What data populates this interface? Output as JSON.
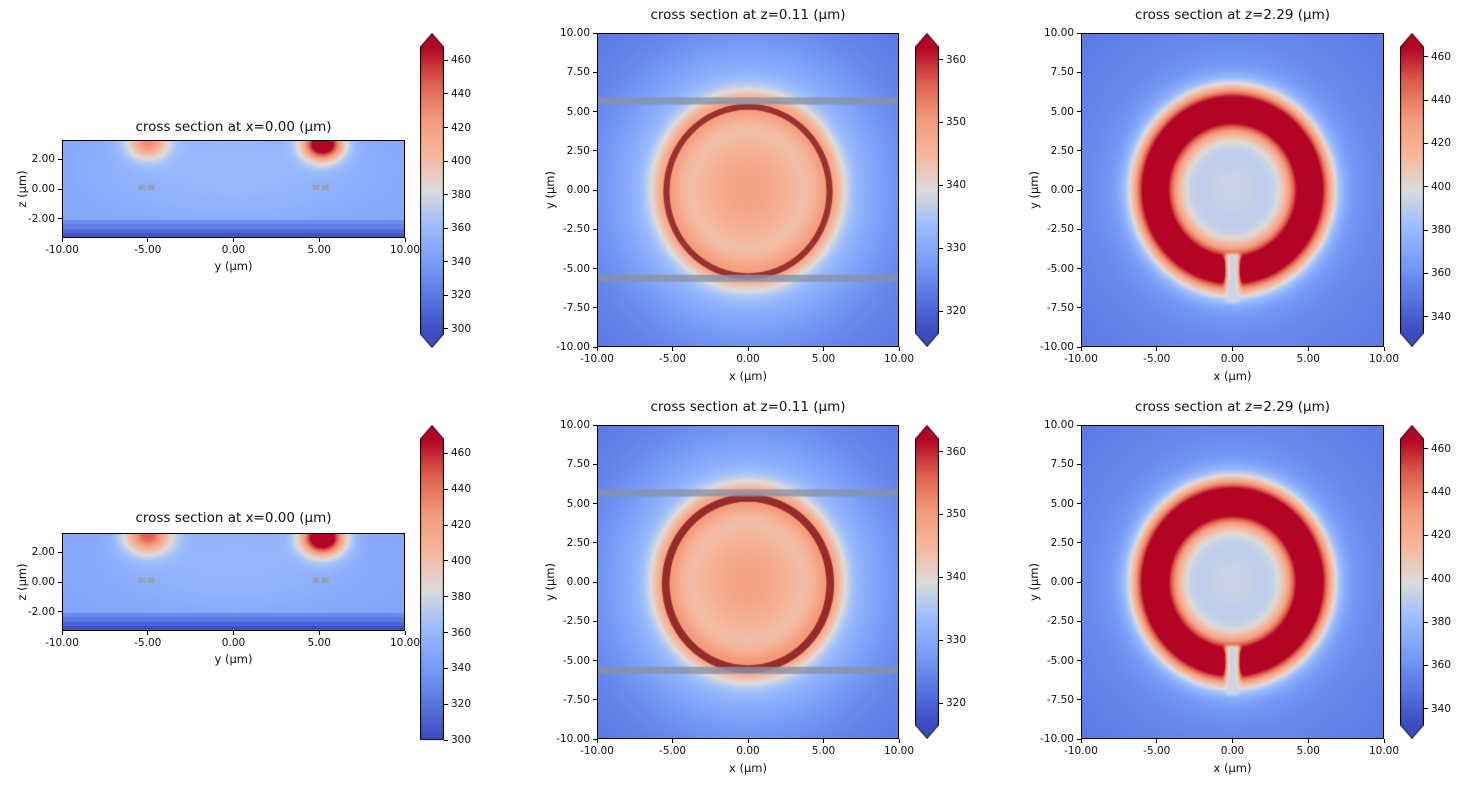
{
  "figure": {
    "background": "#ffffff",
    "colormap": {
      "name": "coolwarm",
      "stops": [
        [
          0.0,
          [
            59,
            76,
            192
          ]
        ],
        [
          0.125,
          [
            89,
            119,
            227
          ]
        ],
        [
          0.25,
          [
            122,
            158,
            248
          ]
        ],
        [
          0.375,
          [
            157,
            189,
            254
          ]
        ],
        [
          0.5,
          [
            221,
            220,
            219
          ]
        ],
        [
          0.625,
          [
            246,
            183,
            156
          ]
        ],
        [
          0.75,
          [
            244,
            154,
            123
          ]
        ],
        [
          0.875,
          [
            222,
            97,
            77
          ]
        ],
        [
          1.0,
          [
            180,
            4,
            38
          ]
        ]
      ]
    }
  },
  "chart_data": [
    {
      "id": "row1-col1",
      "type": "heatmap",
      "title": "cross section at x=0.00 (μm)",
      "xlabel": "y (μm)",
      "ylabel": "z (μm)",
      "x_range": [
        -10,
        10
      ],
      "y_range": [
        -3.27,
        3.27
      ],
      "x_ticks": [
        -10,
        -5,
        0,
        5,
        10
      ],
      "x_tick_labels": [
        "-10.00",
        "-5.00",
        "0.00",
        "5.00",
        "10.00"
      ],
      "y_ticks": [
        2,
        0,
        -2
      ],
      "y_tick_labels": [
        "2.00",
        "0.00",
        "-2.00"
      ],
      "colorbar": {
        "vmin": 297,
        "vmax": 468,
        "tick_values": [
          460,
          440,
          420,
          400,
          380,
          360,
          340,
          320,
          300
        ],
        "tick_labels": [
          "460",
          "440",
          "420",
          "400",
          "380",
          "360",
          "340",
          "320",
          "300"
        ],
        "extend_max": true,
        "extend_min": true
      },
      "field": {
        "model": "chip_section",
        "params": {
          "base": 345,
          "bump": {
            "amp": 14,
            "y0": 0,
            "z0": 1.3,
            "sy": 6.0,
            "sz": 2.6
          },
          "substrate_top": -2.05,
          "substrate_bands": [
            331,
            322,
            312,
            301
          ],
          "blobs": [
            {
              "y0": -5.0,
              "z0": 3.15,
              "sy": 0.85,
              "sz": 0.8,
              "amp": 80
            },
            {
              "y0": 5.2,
              "z0": 3.0,
              "sy": 0.8,
              "sz": 0.75,
              "amp": 152
            }
          ]
        }
      },
      "overlays": [
        {
          "type": "dash",
          "x0": -5.55,
          "x1": -5.15,
          "y0": -0.07,
          "y1": 0.28,
          "color": "#96a0ae",
          "alpha": 0.95
        },
        {
          "type": "dash",
          "x0": -5.0,
          "x1": -4.6,
          "y0": -0.07,
          "y1": 0.28,
          "color": "#96a0ae",
          "alpha": 0.95
        },
        {
          "type": "dash",
          "x0": 4.6,
          "x1": 5.0,
          "y0": -0.07,
          "y1": 0.28,
          "color": "#96a0ae",
          "alpha": 0.95
        },
        {
          "type": "dash",
          "x0": 5.15,
          "x1": 5.55,
          "y0": -0.07,
          "y1": 0.28,
          "color": "#96a0ae",
          "alpha": 0.95
        }
      ]
    },
    {
      "id": "row1-col2",
      "type": "heatmap",
      "title": "cross section at z=0.11 (μm)",
      "xlabel": "x (μm)",
      "ylabel": "y (μm)",
      "x_range": [
        -10,
        10
      ],
      "y_range": [
        -10,
        10
      ],
      "x_ticks": [
        -10,
        -5,
        0,
        5,
        10
      ],
      "x_tick_labels": [
        "-10.00",
        "-5.00",
        "0.00",
        "5.00",
        "10.00"
      ],
      "y_ticks": [
        10,
        7.5,
        5,
        2.5,
        0,
        -2.5,
        -5,
        -7.5,
        -10
      ],
      "y_tick_labels": [
        "10.00",
        "7.50",
        "5.00",
        "2.50",
        "0.00",
        "-2.50",
        "-5.00",
        "-7.50",
        "-10.00"
      ],
      "colorbar": {
        "vmin": 316.5,
        "vmax": 362,
        "tick_values": [
          360,
          350,
          340,
          330,
          320
        ],
        "tick_labels": [
          "360",
          "350",
          "340",
          "330",
          "320"
        ],
        "extend_max": true,
        "extend_min": true
      },
      "field": {
        "model": "radial_blob",
        "params": {
          "base": 322,
          "amp": 27,
          "sigma": 5.2,
          "ring_r": 5.4,
          "ring_sigma": 0.75,
          "ring_amp": 12
        }
      },
      "overlays": [
        {
          "type": "circle",
          "cx": 0,
          "cy": -0.1,
          "r": 5.4,
          "width": 0.4,
          "color": "#8e2222",
          "alpha": 0.88
        },
        {
          "type": "hband",
          "y0": 5.45,
          "y1": 5.9,
          "color": "#8793a6",
          "alpha": 0.82
        },
        {
          "type": "hband",
          "y0": -5.85,
          "y1": -5.4,
          "color": "#8793a6",
          "alpha": 0.82
        }
      ]
    },
    {
      "id": "row1-col3",
      "type": "heatmap",
      "title": "cross section at z=2.29 (μm)",
      "xlabel": "x (μm)",
      "ylabel": "y (μm)",
      "x_range": [
        -10,
        10
      ],
      "y_range": [
        -10,
        10
      ],
      "x_ticks": [
        -10,
        -5,
        0,
        5,
        10
      ],
      "x_tick_labels": [
        "-10.00",
        "-5.00",
        "0.00",
        "5.00",
        "10.00"
      ],
      "y_ticks": [
        10,
        7.5,
        5,
        2.5,
        0,
        -2.5,
        -5,
        -7.5,
        -10
      ],
      "y_tick_labels": [
        "10.00",
        "7.50",
        "5.00",
        "2.50",
        "0.00",
        "-2.50",
        "-5.00",
        "-7.50",
        "-10.00"
      ],
      "colorbar": {
        "vmin": 332.5,
        "vmax": 464.5,
        "tick_values": [
          460,
          440,
          420,
          400,
          380,
          360,
          340
        ],
        "tick_labels": [
          "460",
          "440",
          "420",
          "400",
          "380",
          "360",
          "340"
        ],
        "extend_max": true,
        "extend_min": true
      },
      "field": {
        "model": "annulus",
        "params": {
          "base": 348,
          "halo_amp": 26,
          "halo_sigma": 6.5,
          "center_amp": 20,
          "center_sigma": 3.5,
          "ring_r": 5.15,
          "ring_sigma": 1.0,
          "ring_amp": 128,
          "notch": {
            "half_width": 0.5,
            "y_top": -3.9,
            "y_bottom": -7.4,
            "soft": 0.35,
            "value": 394
          }
        }
      },
      "overlays": []
    },
    {
      "id": "row2-col1",
      "type": "heatmap",
      "title": "cross section at x=0.00 (μm)",
      "xlabel": "y (μm)",
      "ylabel": "z (μm)",
      "x_range": [
        -10,
        10
      ],
      "y_range": [
        -3.27,
        3.27
      ],
      "x_ticks": [
        -10,
        -5,
        0,
        5,
        10
      ],
      "x_tick_labels": [
        "-10.00",
        "-5.00",
        "0.00",
        "5.00",
        "10.00"
      ],
      "y_ticks": [
        2,
        0,
        -2
      ],
      "y_tick_labels": [
        "2.00",
        "0.00",
        "-2.00"
      ],
      "colorbar": {
        "vmin": 300,
        "vmax": 468,
        "tick_values": [
          460,
          440,
          420,
          400,
          380,
          360,
          340,
          320,
          300
        ],
        "tick_labels": [
          "460",
          "440",
          "420",
          "400",
          "380",
          "360",
          "340",
          "320",
          "300"
        ],
        "extend_max": true,
        "extend_min": false
      },
      "field": {
        "model": "chip_section",
        "params": {
          "base": 345,
          "bump": {
            "amp": 14,
            "y0": 0,
            "z0": 1.3,
            "sy": 6.0,
            "sz": 2.6
          },
          "substrate_top": -2.05,
          "substrate_bands": [
            331,
            322,
            312,
            301
          ],
          "blobs": [
            {
              "y0": -5.0,
              "z0": 3.1,
              "sy": 0.95,
              "sz": 0.85,
              "amp": 95
            },
            {
              "y0": 5.2,
              "z0": 2.95,
              "sy": 0.85,
              "sz": 0.8,
              "amp": 158
            }
          ]
        }
      },
      "overlays": [
        {
          "type": "dash",
          "x0": -5.55,
          "x1": -5.15,
          "y0": -0.07,
          "y1": 0.28,
          "color": "#96a0ae",
          "alpha": 0.95
        },
        {
          "type": "dash",
          "x0": -5.0,
          "x1": -4.6,
          "y0": -0.07,
          "y1": 0.28,
          "color": "#96a0ae",
          "alpha": 0.95
        },
        {
          "type": "dash",
          "x0": 4.6,
          "x1": 5.0,
          "y0": -0.07,
          "y1": 0.28,
          "color": "#96a0ae",
          "alpha": 0.95
        },
        {
          "type": "dash",
          "x0": 5.15,
          "x1": 5.55,
          "y0": -0.07,
          "y1": 0.28,
          "color": "#96a0ae",
          "alpha": 0.95
        }
      ]
    },
    {
      "id": "row2-col2",
      "type": "heatmap",
      "title": "cross section at z=0.11 (μm)",
      "xlabel": "x (μm)",
      "ylabel": "y (μm)",
      "x_range": [
        -10,
        10
      ],
      "y_range": [
        -10,
        10
      ],
      "x_ticks": [
        -10,
        -5,
        0,
        5,
        10
      ],
      "x_tick_labels": [
        "-10.00",
        "-5.00",
        "0.00",
        "5.00",
        "10.00"
      ],
      "y_ticks": [
        10,
        7.5,
        5,
        2.5,
        0,
        -2.5,
        -5,
        -7.5,
        -10
      ],
      "y_tick_labels": [
        "10.00",
        "7.50",
        "5.00",
        "2.50",
        "0.00",
        "-2.50",
        "-5.00",
        "-7.50",
        "-10.00"
      ],
      "colorbar": {
        "vmin": 316.5,
        "vmax": 362,
        "tick_values": [
          360,
          350,
          340,
          330,
          320
        ],
        "tick_labels": [
          "360",
          "350",
          "340",
          "330",
          "320"
        ],
        "extend_max": true,
        "extend_min": true
      },
      "field": {
        "model": "radial_blob",
        "params": {
          "base": 322,
          "amp": 27,
          "sigma": 5.2,
          "ring_r": 5.4,
          "ring_sigma": 0.75,
          "ring_amp": 13
        }
      },
      "overlays": [
        {
          "type": "circle",
          "cx": 0,
          "cy": -0.1,
          "r": 5.45,
          "width": 0.5,
          "color": "#8e2222",
          "alpha": 0.92
        },
        {
          "type": "hband",
          "y0": 5.45,
          "y1": 5.9,
          "color": "#8793a6",
          "alpha": 0.82
        },
        {
          "type": "hband",
          "y0": -5.85,
          "y1": -5.4,
          "color": "#8793a6",
          "alpha": 0.82
        }
      ]
    },
    {
      "id": "row2-col3",
      "type": "heatmap",
      "title": "cross section at z=2.29 (μm)",
      "xlabel": "x (μm)",
      "ylabel": "y (μm)",
      "x_range": [
        -10,
        10
      ],
      "y_range": [
        -10,
        10
      ],
      "x_ticks": [
        -10,
        -5,
        0,
        5,
        10
      ],
      "x_tick_labels": [
        "-10.00",
        "-5.00",
        "0.00",
        "5.00",
        "10.00"
      ],
      "y_ticks": [
        10,
        7.5,
        5,
        2.5,
        0,
        -2.5,
        -5,
        -7.5,
        -10
      ],
      "y_tick_labels": [
        "10.00",
        "7.50",
        "5.00",
        "2.50",
        "0.00",
        "-2.50",
        "-5.00",
        "-7.50",
        "-10.00"
      ],
      "colorbar": {
        "vmin": 332.5,
        "vmax": 464.5,
        "tick_values": [
          460,
          440,
          420,
          400,
          380,
          360,
          340
        ],
        "tick_labels": [
          "460",
          "440",
          "420",
          "400",
          "380",
          "360",
          "340"
        ],
        "extend_max": true,
        "extend_min": true
      },
      "field": {
        "model": "annulus",
        "params": {
          "base": 348,
          "halo_amp": 26,
          "halo_sigma": 6.5,
          "center_amp": 20,
          "center_sigma": 3.5,
          "ring_r": 5.15,
          "ring_sigma": 1.0,
          "ring_amp": 132,
          "notch": {
            "half_width": 0.5,
            "y_top": -3.9,
            "y_bottom": -7.4,
            "soft": 0.35,
            "value": 394
          }
        }
      },
      "overlays": []
    }
  ]
}
